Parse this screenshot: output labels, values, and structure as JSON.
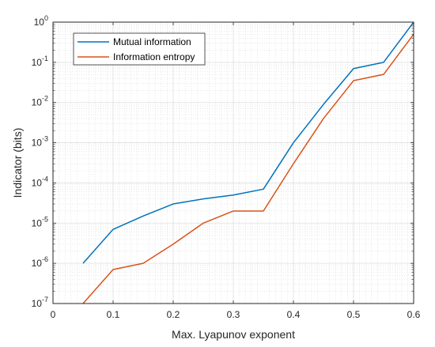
{
  "chart_data": {
    "type": "line",
    "xlabel": "Max. Lyapunov exponent",
    "ylabel": "Indicator (bits)",
    "xlim": [
      0,
      0.6
    ],
    "ylim": [
      1e-07,
      1
    ],
    "yscale": "log",
    "grid": true,
    "minor_grid": true,
    "legend_position": "top-left",
    "x_ticks": [
      "0",
      "0.1",
      "0.2",
      "0.3",
      "0.4",
      "0.5",
      "0.6"
    ],
    "y_ticks": [
      {
        "base": "10",
        "exp": "-7"
      },
      {
        "base": "10",
        "exp": "-6"
      },
      {
        "base": "10",
        "exp": "-5"
      },
      {
        "base": "10",
        "exp": "-4"
      },
      {
        "base": "10",
        "exp": "-3"
      },
      {
        "base": "10",
        "exp": "-2"
      },
      {
        "base": "10",
        "exp": "-1"
      },
      {
        "base": "10",
        "exp": "0"
      }
    ],
    "series": [
      {
        "name": "Mutual information",
        "color": "#0072BD",
        "x": [
          0.05,
          0.1,
          0.15,
          0.2,
          0.25,
          0.3,
          0.35,
          0.4,
          0.45,
          0.5,
          0.55,
          0.6
        ],
        "y": [
          1e-06,
          7e-06,
          1.5e-05,
          3e-05,
          4e-05,
          5e-05,
          7e-05,
          0.001,
          0.009,
          0.07,
          0.1,
          1
        ]
      },
      {
        "name": "Information entropy",
        "color": "#D95319",
        "x": [
          0.05,
          0.1,
          0.15,
          0.2,
          0.25,
          0.3,
          0.35,
          0.4,
          0.45,
          0.5,
          0.55,
          0.6
        ],
        "y": [
          1e-07,
          7e-07,
          1e-06,
          3e-06,
          1e-05,
          2e-05,
          2e-05,
          0.0003,
          0.004,
          0.035,
          0.05,
          0.5
        ]
      }
    ]
  }
}
